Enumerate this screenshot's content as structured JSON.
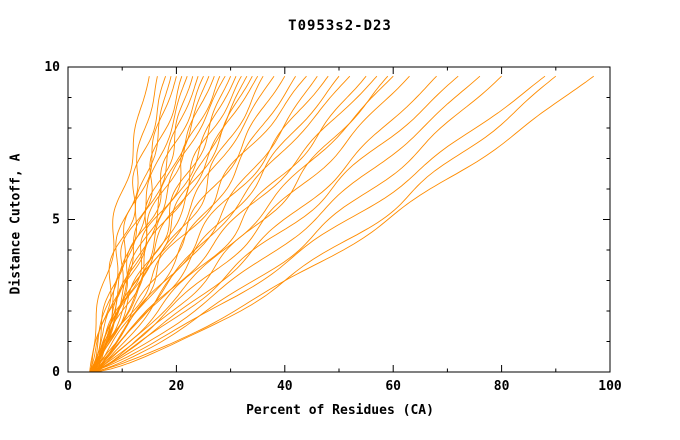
{
  "title": "T0953s2-D23",
  "chart_data": {
    "type": "line",
    "title": "T0953s2-D23",
    "xlabel": "Percent of Residues (CA)",
    "ylabel": "Distance Cutoff, A",
    "xlim": [
      0,
      100
    ],
    "ylim": [
      0,
      10
    ],
    "x_major_ticks": [
      0,
      20,
      40,
      60,
      80,
      100
    ],
    "x_minor_ticks": [
      10,
      30,
      50,
      70,
      90
    ],
    "y_major_ticks": [
      0,
      5,
      10
    ],
    "y_minor_ticks": [
      1,
      2,
      3,
      4,
      6,
      7,
      8,
      9
    ],
    "grid": false,
    "legend": "none",
    "line_color": "#ff8c00",
    "axis_color": "#000000",
    "background_color": "#ffffff",
    "y_curve_top": 9.7,
    "series_note": "Each model curve: percent of CA residues (x) within distance cutoff (y); parametrized by x_start at y=0, x_end at y=9.7, shape exponent, wiggle amplitude",
    "series": [
      {
        "x_start": 4.0,
        "x_end": 15.0,
        "shape": 1.2,
        "wiggle": 0.8
      },
      {
        "x_start": 4.5,
        "x_end": 16.5,
        "shape": 1.0,
        "wiggle": 1.0
      },
      {
        "x_start": 4.2,
        "x_end": 18.0,
        "shape": 1.1,
        "wiggle": 1.2
      },
      {
        "x_start": 5.0,
        "x_end": 19.0,
        "shape": 0.95,
        "wiggle": 0.9
      },
      {
        "x_start": 4.8,
        "x_end": 20.0,
        "shape": 1.2,
        "wiggle": 1.1
      },
      {
        "x_start": 4.0,
        "x_end": 21.0,
        "shape": 1.0,
        "wiggle": 1.4
      },
      {
        "x_start": 5.2,
        "x_end": 22.0,
        "shape": 1.1,
        "wiggle": 0.8
      },
      {
        "x_start": 4.6,
        "x_end": 23.0,
        "shape": 0.9,
        "wiggle": 1.2
      },
      {
        "x_start": 4.3,
        "x_end": 24.0,
        "shape": 1.05,
        "wiggle": 1.0
      },
      {
        "x_start": 5.5,
        "x_end": 25.0,
        "shape": 1.15,
        "wiggle": 1.3
      },
      {
        "x_start": 4.1,
        "x_end": 26.0,
        "shape": 0.95,
        "wiggle": 0.9
      },
      {
        "x_start": 4.9,
        "x_end": 27.0,
        "shape": 1.1,
        "wiggle": 1.1
      },
      {
        "x_start": 4.4,
        "x_end": 28.0,
        "shape": 1.0,
        "wiggle": 1.5
      },
      {
        "x_start": 5.1,
        "x_end": 29.0,
        "shape": 1.2,
        "wiggle": 0.9
      },
      {
        "x_start": 4.2,
        "x_end": 30.0,
        "shape": 0.9,
        "wiggle": 1.2
      },
      {
        "x_start": 4.7,
        "x_end": 31.0,
        "shape": 1.05,
        "wiggle": 1.0
      },
      {
        "x_start": 5.3,
        "x_end": 32.0,
        "shape": 1.1,
        "wiggle": 1.4
      },
      {
        "x_start": 4.5,
        "x_end": 33.0,
        "shape": 0.95,
        "wiggle": 0.8
      },
      {
        "x_start": 4.0,
        "x_end": 34.0,
        "shape": 1.0,
        "wiggle": 1.2
      },
      {
        "x_start": 5.0,
        "x_end": 35.0,
        "shape": 1.15,
        "wiggle": 1.0
      },
      {
        "x_start": 4.6,
        "x_end": 36.0,
        "shape": 0.9,
        "wiggle": 1.3
      },
      {
        "x_start": 4.3,
        "x_end": 38.0,
        "shape": 1.05,
        "wiggle": 0.9
      },
      {
        "x_start": 5.2,
        "x_end": 40.0,
        "shape": 1.0,
        "wiggle": 1.2
      },
      {
        "x_start": 4.8,
        "x_end": 42.0,
        "shape": 0.95,
        "wiggle": 1.0
      },
      {
        "x_start": 4.4,
        "x_end": 44.0,
        "shape": 1.1,
        "wiggle": 1.4
      },
      {
        "x_start": 5.0,
        "x_end": 46.0,
        "shape": 0.9,
        "wiggle": 0.9
      },
      {
        "x_start": 4.2,
        "x_end": 48.0,
        "shape": 1.0,
        "wiggle": 1.2
      },
      {
        "x_start": 4.7,
        "x_end": 50.0,
        "shape": 0.95,
        "wiggle": 1.1
      },
      {
        "x_start": 5.4,
        "x_end": 52.0,
        "shape": 1.05,
        "wiggle": 0.8
      },
      {
        "x_start": 4.5,
        "x_end": 55.0,
        "shape": 0.9,
        "wiggle": 1.3
      },
      {
        "x_start": 4.1,
        "x_end": 57.0,
        "shape": 1.0,
        "wiggle": 1.0
      },
      {
        "x_start": 4.9,
        "x_end": 59.0,
        "shape": 0.85,
        "wiggle": 1.2
      },
      {
        "x_start": 5.1,
        "x_end": 60.0,
        "shape": 0.95,
        "wiggle": 0.9
      },
      {
        "x_start": 4.6,
        "x_end": 63.0,
        "shape": 0.9,
        "wiggle": 1.1
      },
      {
        "x_start": 4.3,
        "x_end": 68.0,
        "shape": 0.85,
        "wiggle": 1.0
      },
      {
        "x_start": 5.0,
        "x_end": 72.0,
        "shape": 0.9,
        "wiggle": 1.2
      },
      {
        "x_start": 4.4,
        "x_end": 76.0,
        "shape": 0.85,
        "wiggle": 0.9
      },
      {
        "x_start": 4.8,
        "x_end": 80.0,
        "shape": 0.8,
        "wiggle": 1.1
      },
      {
        "x_start": 4.2,
        "x_end": 88.0,
        "shape": 0.85,
        "wiggle": 1.0
      },
      {
        "x_start": 5.2,
        "x_end": 90.0,
        "shape": 0.75,
        "wiggle": 1.2
      },
      {
        "x_start": 4.6,
        "x_end": 97.0,
        "shape": 0.8,
        "wiggle": 0.9
      }
    ]
  }
}
